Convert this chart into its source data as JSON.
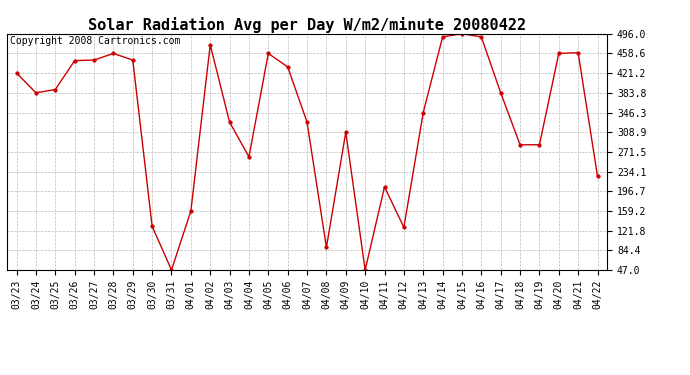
{
  "title": "Solar Radiation Avg per Day W/m2/minute 20080422",
  "copyright": "Copyright 2008 Cartronics.com",
  "dates": [
    "03/23",
    "03/24",
    "03/25",
    "03/26",
    "03/27",
    "03/28",
    "03/29",
    "03/30",
    "03/31",
    "04/01",
    "04/02",
    "04/03",
    "04/04",
    "04/05",
    "04/06",
    "04/07",
    "04/08",
    "04/09",
    "04/10",
    "04/11",
    "04/12",
    "04/13",
    "04/14",
    "04/15",
    "04/16",
    "04/17",
    "04/18",
    "04/19",
    "04/20",
    "04/21",
    "04/22"
  ],
  "values": [
    421.2,
    383.8,
    390.0,
    445.0,
    446.0,
    458.6,
    446.0,
    130.0,
    47.0,
    159.2,
    475.0,
    328.0,
    262.0,
    458.6,
    433.0,
    328.0,
    90.0,
    308.9,
    47.0,
    205.0,
    128.0,
    346.3,
    490.0,
    496.0,
    490.0,
    383.8,
    285.0,
    285.0,
    458.6,
    460.0,
    225.0
  ],
  "line_color": "#cc0000",
  "marker_color": "#cc0000",
  "bg_color": "#ffffff",
  "grid_color": "#bbbbbb",
  "ylim": [
    47.0,
    496.0
  ],
  "yticks": [
    47.0,
    84.4,
    121.8,
    159.2,
    196.7,
    234.1,
    271.5,
    308.9,
    346.3,
    383.8,
    421.2,
    458.6,
    496.0
  ],
  "title_fontsize": 11,
  "copyright_fontsize": 7,
  "tick_fontsize": 7
}
